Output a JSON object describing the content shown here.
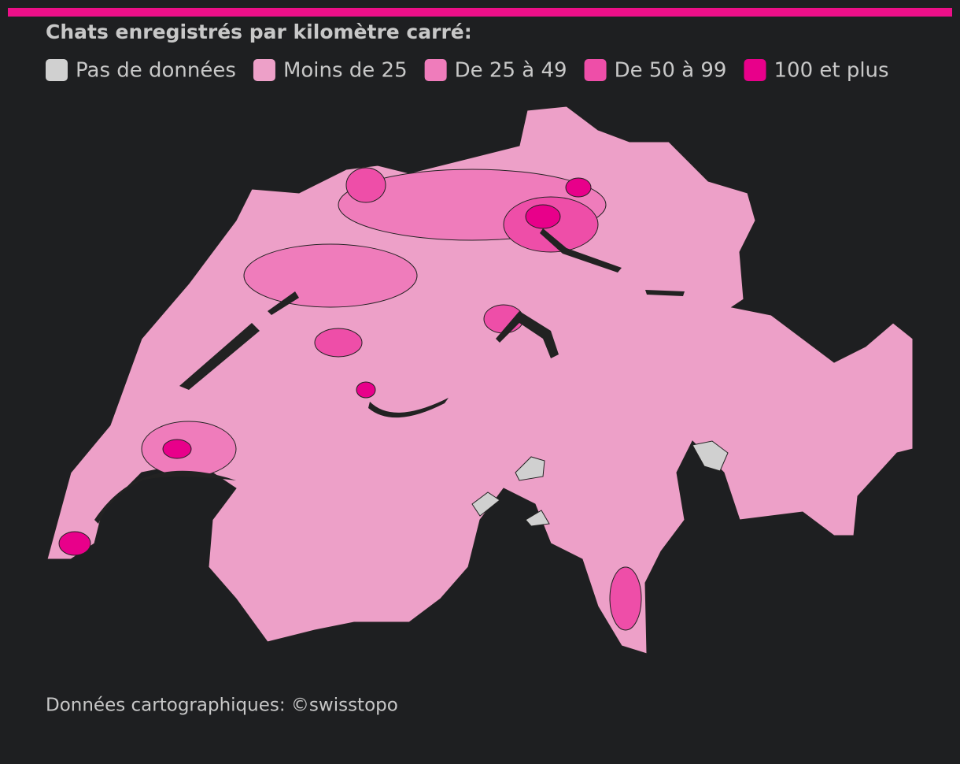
{
  "legend": {
    "title": "Chats enregistrés par kilomètre carré:",
    "items": [
      {
        "label": "Pas de données",
        "color": "#d0d0d0"
      },
      {
        "label": "Moins de 25",
        "color": "#eda0c8"
      },
      {
        "label": "De 25 à 49",
        "color": "#ef7cbb"
      },
      {
        "label": "De 50 à 99",
        "color": "#ee4ea8"
      },
      {
        "label": "100 et plus",
        "color": "#e8008a"
      }
    ]
  },
  "source": "Données cartographiques: ©swisstopo"
}
